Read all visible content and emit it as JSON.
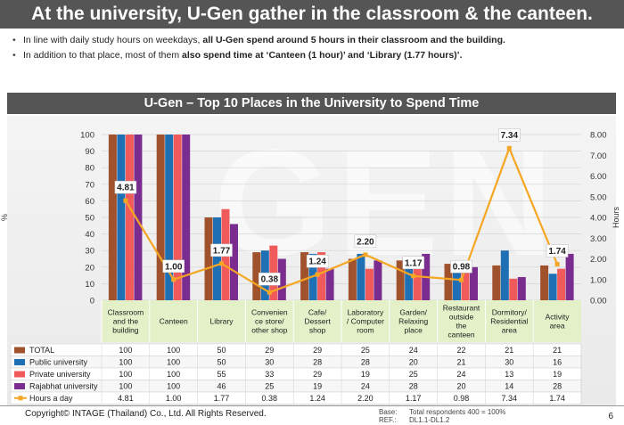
{
  "header": {
    "title": "At the university, U-Gen gather in the classroom & the canteen."
  },
  "bullets": [
    {
      "pre": "In line with daily study hours on weekdays, ",
      "bold": "all U-Gen spend around 5 hours in their classroom and the building.",
      "post": ""
    },
    {
      "pre": "In addition to that place, most of them ",
      "bold": "also spend time at ‘Canteen (1 hour)’ and ‘Library (1.77 hours)’.",
      "post": ""
    }
  ],
  "banner": {
    "title": "U-Gen – Top 10 Places in the University to Spend Time"
  },
  "watermark": "GEN",
  "chart_data": {
    "type": "bar",
    "categories": [
      "Classroom and the building",
      "Canteen",
      "Library",
      "Convenien ce store/ other shop",
      "Cafe/ Dessert shop",
      "Laboratory / Computer room",
      "Garden/ Relaxing place",
      "Restaurant outside the canteen",
      "Dormitory/ Residential area",
      "Activity area"
    ],
    "series": [
      {
        "name": "TOTAL",
        "values": [
          100,
          100,
          50,
          29,
          29,
          25,
          24,
          22,
          21,
          21
        ]
      },
      {
        "name": "Public university",
        "values": [
          100,
          100,
          50,
          30,
          28,
          28,
          20,
          21,
          30,
          16
        ]
      },
      {
        "name": "Private university",
        "values": [
          100,
          100,
          55,
          33,
          29,
          19,
          25,
          24,
          13,
          19
        ]
      },
      {
        "name": "Rajabhat university",
        "values": [
          100,
          100,
          46,
          25,
          19,
          24,
          28,
          20,
          14,
          28
        ]
      }
    ],
    "line_series": {
      "name": "Hours a day",
      "values": [
        4.81,
        1.0,
        1.77,
        0.38,
        1.24,
        2.2,
        1.17,
        0.98,
        7.34,
        1.74
      ]
    },
    "line_labels": [
      "4.81",
      "1.00",
      "1.77",
      "0.38",
      "1.24",
      "2.20",
      "1.17",
      "0.98",
      "7.34",
      "1.74"
    ],
    "table_hours_labels": [
      "4.81",
      "1.00",
      "1.77",
      "0.38",
      "1.24",
      "2.20",
      "1.17",
      "0.98",
      "7.34",
      "1.74"
    ],
    "colors": [
      "#a0522d",
      "#1f6fb5",
      "#f05a5a",
      "#7b2c8f"
    ],
    "line_color": "#f5a623",
    "ylabel": "%",
    "y2label": "Hours",
    "ylim": [
      0,
      100
    ],
    "y2lim": [
      0,
      8
    ],
    "y_ticks": [
      "0",
      "10",
      "20",
      "30",
      "40",
      "50",
      "60",
      "70",
      "80",
      "90",
      "100"
    ],
    "y2_ticks": [
      "0.00",
      "1.00",
      "2.00",
      "3.00",
      "4.00",
      "5.00",
      "6.00",
      "7.00",
      "8.00"
    ],
    "legend": "table-below"
  },
  "footer": {
    "copyright": "Copyright© INTAGE (Thailand) Co., Ltd. All Rights Reserved.",
    "base_label": "Base:",
    "base_value": "Total respondents 400 = 100%",
    "ref_label": "REF.:",
    "ref_value": "DL1.1-DL1.2",
    "page": "6"
  }
}
